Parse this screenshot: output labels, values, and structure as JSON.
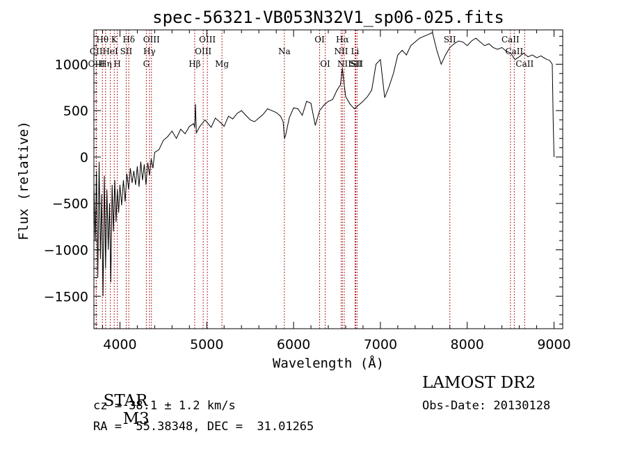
{
  "chart_data": {
    "type": "line",
    "title": "spec-56321-VB053N32V1_sp06-025.fits",
    "xlabel": "Wavelength (Å)",
    "ylabel": "Flux (relative)",
    "xlim": [
      3700,
      9100
    ],
    "ylim": [
      -1850,
      1370
    ],
    "x_ticks": [
      4000,
      5000,
      6000,
      7000,
      8000,
      9000
    ],
    "y_ticks": [
      -1500,
      -1000,
      -500,
      0,
      500,
      1000
    ],
    "grid": false,
    "line_color": "#000000",
    "marker_color": "#b22222",
    "series": [
      {
        "points": [
          [
            3700,
            -300
          ],
          [
            3715,
            -900
          ],
          [
            3730,
            -150
          ],
          [
            3745,
            -1300
          ],
          [
            3760,
            -50
          ],
          [
            3775,
            -1100
          ],
          [
            3790,
            -400
          ],
          [
            3805,
            -1500
          ],
          [
            3820,
            -200
          ],
          [
            3835,
            -1200
          ],
          [
            3850,
            -350
          ],
          [
            3865,
            -1000
          ],
          [
            3880,
            -500
          ],
          [
            3895,
            -1350
          ],
          [
            3910,
            -300
          ],
          [
            3925,
            -800
          ],
          [
            3940,
            -250
          ],
          [
            3955,
            -700
          ],
          [
            3970,
            -350
          ],
          [
            3985,
            -600
          ],
          [
            4000,
            -300
          ],
          [
            4020,
            -520
          ],
          [
            4040,
            -250
          ],
          [
            4060,
            -480
          ],
          [
            4080,
            -180
          ],
          [
            4100,
            -350
          ],
          [
            4120,
            -120
          ],
          [
            4140,
            -280
          ],
          [
            4160,
            -150
          ],
          [
            4180,
            -300
          ],
          [
            4200,
            -100
          ],
          [
            4220,
            -320
          ],
          [
            4240,
            -50
          ],
          [
            4260,
            -250
          ],
          [
            4280,
            -80
          ],
          [
            4300,
            -300
          ],
          [
            4320,
            -60
          ],
          [
            4340,
            -200
          ],
          [
            4360,
            -20
          ],
          [
            4380,
            -120
          ],
          [
            4400,
            50
          ],
          [
            4450,
            80
          ],
          [
            4500,
            180
          ],
          [
            4550,
            220
          ],
          [
            4600,
            280
          ],
          [
            4650,
            200
          ],
          [
            4700,
            300
          ],
          [
            4750,
            250
          ],
          [
            4800,
            330
          ],
          [
            4850,
            360
          ],
          [
            4861,
            320
          ],
          [
            4870,
            570
          ],
          [
            4880,
            260
          ],
          [
            4920,
            330
          ],
          [
            4980,
            400
          ],
          [
            5050,
            320
          ],
          [
            5100,
            420
          ],
          [
            5170,
            360
          ],
          [
            5200,
            330
          ],
          [
            5250,
            440
          ],
          [
            5300,
            410
          ],
          [
            5350,
            470
          ],
          [
            5400,
            500
          ],
          [
            5450,
            450
          ],
          [
            5500,
            400
          ],
          [
            5550,
            380
          ],
          [
            5600,
            420
          ],
          [
            5650,
            460
          ],
          [
            5700,
            520
          ],
          [
            5750,
            500
          ],
          [
            5800,
            480
          ],
          [
            5850,
            440
          ],
          [
            5880,
            380
          ],
          [
            5895,
            200
          ],
          [
            5910,
            240
          ],
          [
            5950,
            420
          ],
          [
            6000,
            530
          ],
          [
            6050,
            520
          ],
          [
            6100,
            450
          ],
          [
            6150,
            600
          ],
          [
            6200,
            580
          ],
          [
            6250,
            340
          ],
          [
            6300,
            500
          ],
          [
            6350,
            560
          ],
          [
            6400,
            600
          ],
          [
            6450,
            620
          ],
          [
            6500,
            720
          ],
          [
            6540,
            780
          ],
          [
            6563,
            960
          ],
          [
            6580,
            800
          ],
          [
            6600,
            650
          ],
          [
            6650,
            570
          ],
          [
            6700,
            520
          ],
          [
            6750,
            560
          ],
          [
            6800,
            600
          ],
          [
            6850,
            650
          ],
          [
            6900,
            720
          ],
          [
            6950,
            1000
          ],
          [
            7000,
            1050
          ],
          [
            7050,
            640
          ],
          [
            7100,
            760
          ],
          [
            7150,
            900
          ],
          [
            7200,
            1100
          ],
          [
            7250,
            1150
          ],
          [
            7300,
            1100
          ],
          [
            7350,
            1200
          ],
          [
            7400,
            1240
          ],
          [
            7450,
            1280
          ],
          [
            7500,
            1300
          ],
          [
            7550,
            1320
          ],
          [
            7600,
            1340
          ],
          [
            7650,
            1150
          ],
          [
            7700,
            1000
          ],
          [
            7750,
            1100
          ],
          [
            7800,
            1180
          ],
          [
            7850,
            1220
          ],
          [
            7900,
            1250
          ],
          [
            7950,
            1240
          ],
          [
            8000,
            1200
          ],
          [
            8050,
            1250
          ],
          [
            8100,
            1280
          ],
          [
            8150,
            1240
          ],
          [
            8200,
            1200
          ],
          [
            8250,
            1220
          ],
          [
            8300,
            1180
          ],
          [
            8350,
            1160
          ],
          [
            8400,
            1180
          ],
          [
            8450,
            1140
          ],
          [
            8500,
            1120
          ],
          [
            8550,
            1050
          ],
          [
            8600,
            1080
          ],
          [
            8650,
            1120
          ],
          [
            8700,
            1080
          ],
          [
            8750,
            1100
          ],
          [
            8800,
            1070
          ],
          [
            8850,
            1090
          ],
          [
            8900,
            1060
          ],
          [
            8950,
            1040
          ],
          [
            8980,
            1000
          ],
          [
            8990,
            400
          ],
          [
            9000,
            0
          ]
        ]
      }
    ],
    "lines": [
      {
        "name": "Hθ",
        "x": 3798,
        "row": 1
      },
      {
        "name": "CII",
        "x": 3726,
        "row": 2
      },
      {
        "name": "OIII",
        "x": 3729,
        "row": 3
      },
      {
        "name": "K",
        "x": 3934,
        "row": 1
      },
      {
        "name": "HeI",
        "x": 3889,
        "row": 2
      },
      {
        "name": "Hη",
        "x": 3835,
        "row": 3
      },
      {
        "name": "Hδ",
        "x": 4102,
        "row": 1
      },
      {
        "name": "SII",
        "x": 4072,
        "row": 2
      },
      {
        "name": "H",
        "x": 3969,
        "row": 3
      },
      {
        "name": "OIII",
        "x": 4363,
        "row": 1
      },
      {
        "name": "Hγ",
        "x": 4340,
        "row": 2
      },
      {
        "name": "G",
        "x": 4304,
        "row": 3
      },
      {
        "name": "OIII",
        "x": 5007,
        "row": 1
      },
      {
        "name": "OIII",
        "x": 4959,
        "row": 2
      },
      {
        "name": "Hβ",
        "x": 4861,
        "row": 3
      },
      {
        "name": "Mg",
        "x": 5175,
        "row": 3
      },
      {
        "name": "Na",
        "x": 5894,
        "row": 2
      },
      {
        "name": "OI",
        "x": 6300,
        "row": 1
      },
      {
        "name": "OI",
        "x": 6364,
        "row": 3
      },
      {
        "name": "Hα",
        "x": 6563,
        "row": 1
      },
      {
        "name": "NII",
        "x": 6548,
        "row": 2
      },
      {
        "name": "Li",
        "x": 6708,
        "row": 2
      },
      {
        "name": "NII",
        "x": 6584,
        "row": 3
      },
      {
        "name": "SII",
        "x": 6716,
        "row": 3
      },
      {
        "name": "SII",
        "x": 6731,
        "row": 3
      },
      {
        "name": "SII",
        "x": 7800,
        "row": 1
      },
      {
        "name": "CaII",
        "x": 8498,
        "row": 1
      },
      {
        "name": "CaII",
        "x": 8542,
        "row": 2
      },
      {
        "name": "CaII",
        "x": 8662,
        "row": 3
      }
    ]
  },
  "info": {
    "object_class": "STAR",
    "subclass": "M3",
    "survey": "LAMOST DR2",
    "cz": "cz = 38.1 ± 1.2 km/s",
    "obs_date": "Obs-Date: 20130128",
    "radec": "RA =  55.38348, DEC =  31.01265"
  }
}
